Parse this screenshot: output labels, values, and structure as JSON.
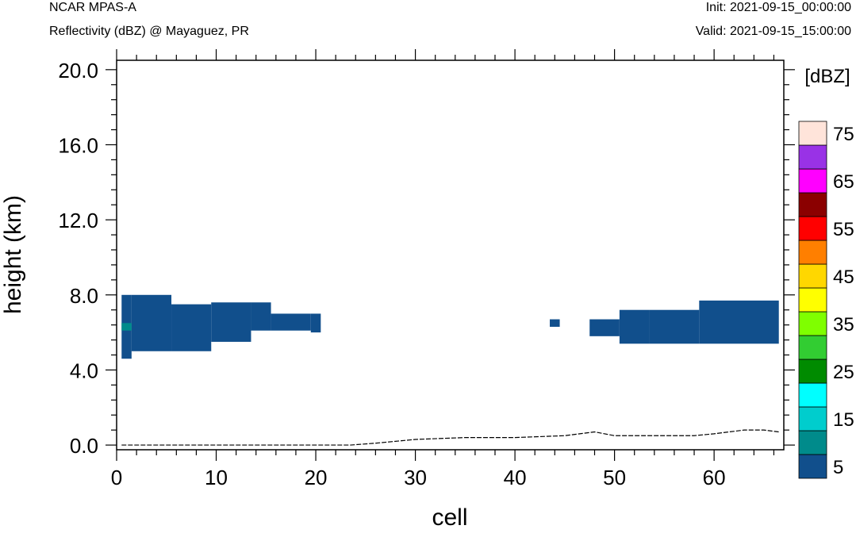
{
  "header": {
    "model": "NCAR MPAS-A",
    "field": "Reflectivity (dBZ) @ Mayaguez, PR",
    "init": "Init: 2021-09-15_00:00:00",
    "valid": "Valid: 2021-09-15_15:00:00"
  },
  "chart_data": {
    "type": "heatmap",
    "xlabel": "cell",
    "ylabel": "height (km)",
    "xlim": [
      0,
      67
    ],
    "ylim": [
      -0.25,
      20.5
    ],
    "x_ticks": [
      0,
      10,
      20,
      30,
      40,
      50,
      60
    ],
    "x_tick_labels": [
      "0",
      "10",
      "20",
      "30",
      "40",
      "50",
      "60"
    ],
    "y_ticks": [
      0,
      4,
      8,
      12,
      16,
      20
    ],
    "y_tick_labels": [
      "0.0",
      "4.0",
      "8.0",
      "12.0",
      "16.0",
      "20.0"
    ],
    "colorbar": {
      "title": "[dBZ]",
      "levels": [
        5,
        10,
        15,
        20,
        25,
        30,
        35,
        40,
        45,
        50,
        55,
        60,
        65,
        70,
        75
      ],
      "labels": [
        "5",
        "15",
        "25",
        "35",
        "45",
        "55",
        "65",
        "75"
      ],
      "colors": [
        "#114f8c",
        "#008b8b",
        "#00cdcd",
        "#00ffff",
        "#008b00",
        "#32cd32",
        "#7fff00",
        "#ffff00",
        "#ffd700",
        "#ff7f00",
        "#ff0000",
        "#8b0000",
        "#ff00ff",
        "#9932e6",
        "#ffe4da"
      ]
    },
    "cells": [
      {
        "x0": 0.5,
        "x1": 1.5,
        "y0": 4.6,
        "y1": 8.0,
        "dbz": 5
      },
      {
        "x0": 1.5,
        "x1": 5.5,
        "y0": 5.0,
        "y1": 8.0,
        "dbz": 5
      },
      {
        "x0": 5.5,
        "x1": 9.5,
        "y0": 5.0,
        "y1": 7.5,
        "dbz": 5
      },
      {
        "x0": 9.5,
        "x1": 13.5,
        "y0": 5.5,
        "y1": 7.6,
        "dbz": 5
      },
      {
        "x0": 13.5,
        "x1": 15.5,
        "y0": 6.1,
        "y1": 7.6,
        "dbz": 5
      },
      {
        "x0": 15.5,
        "x1": 19.5,
        "y0": 6.1,
        "y1": 7.0,
        "dbz": 5
      },
      {
        "x0": 19.5,
        "x1": 20.5,
        "y0": 6.0,
        "y1": 7.0,
        "dbz": 5
      },
      {
        "x0": 43.5,
        "x1": 44.5,
        "y0": 6.3,
        "y1": 6.7,
        "dbz": 5
      },
      {
        "x0": 47.5,
        "x1": 50.5,
        "y0": 5.8,
        "y1": 6.7,
        "dbz": 5
      },
      {
        "x0": 50.5,
        "x1": 53.5,
        "y0": 5.4,
        "y1": 7.2,
        "dbz": 5
      },
      {
        "x0": 53.5,
        "x1": 58.5,
        "y0": 5.4,
        "y1": 7.2,
        "dbz": 5
      },
      {
        "x0": 58.5,
        "x1": 66.5,
        "y0": 5.4,
        "y1": 7.7,
        "dbz": 5
      },
      {
        "x0": 0.5,
        "x1": 1.5,
        "y0": 6.1,
        "y1": 6.5,
        "dbz": 10
      }
    ],
    "terrain": {
      "x": [
        0.5,
        23.5,
        26,
        30,
        35,
        40,
        45,
        48,
        50,
        55,
        58,
        60,
        63,
        65,
        66.5
      ],
      "y": [
        0.0,
        0.0,
        0.1,
        0.3,
        0.4,
        0.4,
        0.5,
        0.7,
        0.5,
        0.5,
        0.5,
        0.6,
        0.8,
        0.8,
        0.7
      ]
    }
  }
}
